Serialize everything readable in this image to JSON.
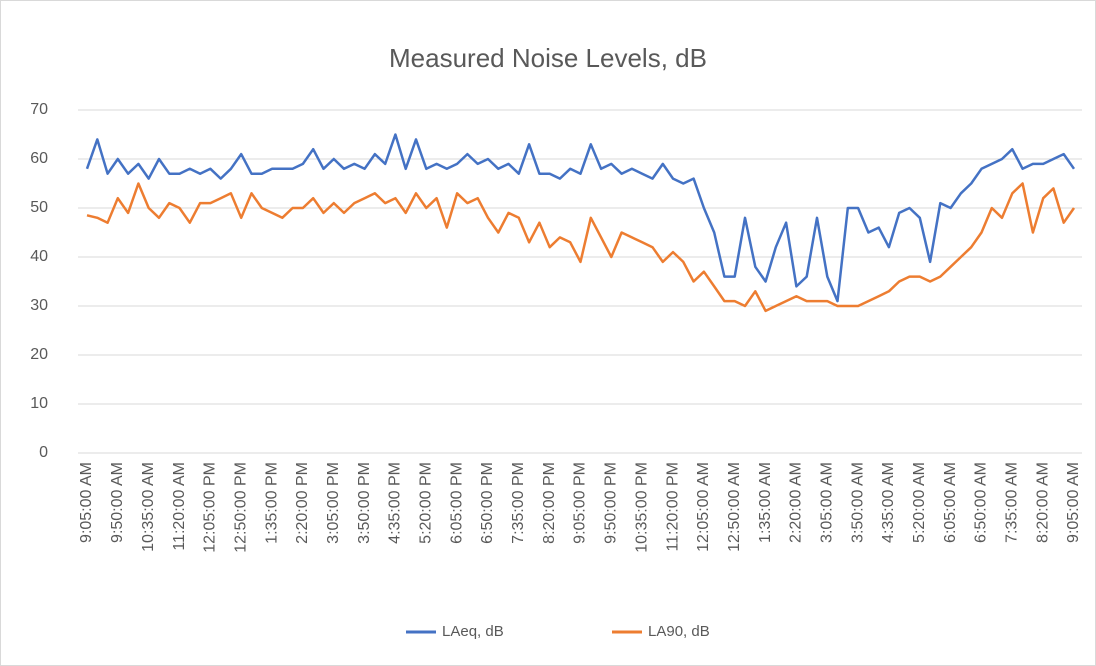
{
  "chart_data": {
    "type": "line",
    "title": "Measured Noise Levels, dB",
    "categories": [
      "9:05:00 AM",
      null,
      null,
      "9:50:00 AM",
      null,
      null,
      "10:35:00 AM",
      null,
      null,
      "11:20:00 AM",
      null,
      null,
      "12:05:00 PM",
      null,
      null,
      "12:50:00 PM",
      null,
      null,
      "1:35:00 PM",
      null,
      null,
      "2:20:00 PM",
      null,
      null,
      "3:05:00 PM",
      null,
      null,
      "3:50:00 PM",
      null,
      null,
      "4:35:00 PM",
      null,
      null,
      "5:20:00 PM",
      null,
      null,
      "6:05:00 PM",
      null,
      null,
      "6:50:00 PM",
      null,
      null,
      "7:35:00 PM",
      null,
      null,
      "8:20:00 PM",
      null,
      null,
      "9:05:00 PM",
      null,
      null,
      "9:50:00 PM",
      null,
      null,
      "10:35:00 PM",
      null,
      null,
      "11:20:00 PM",
      null,
      null,
      "12:05:00 AM",
      null,
      null,
      "12:50:00 AM",
      null,
      null,
      "1:35:00 AM",
      null,
      null,
      "2:20:00 AM",
      null,
      null,
      "3:05:00 AM",
      null,
      null,
      "3:50:00 AM",
      null,
      null,
      "4:35:00 AM",
      null,
      null,
      "5:20:00 AM",
      null,
      null,
      "6:05:00 AM",
      null,
      null,
      "6:50:00 AM",
      null,
      null,
      "7:35:00 AM",
      null,
      null,
      "8:20:00 AM",
      null,
      null,
      "9:05:00 AM"
    ],
    "series": [
      {
        "name": "LAeq, dB",
        "color": "#4472c4",
        "values": [
          58,
          64,
          57,
          60,
          57,
          59,
          56,
          60,
          57,
          57,
          58,
          57,
          58,
          56,
          58,
          61,
          57,
          57,
          58,
          58,
          58,
          59,
          62,
          58,
          60,
          58,
          59,
          58,
          61,
          59,
          65,
          58,
          64,
          58,
          59,
          58,
          59,
          61,
          59,
          60,
          58,
          59,
          57,
          63,
          57,
          57,
          56,
          58,
          57,
          63,
          58,
          59,
          57,
          58,
          57,
          56,
          59,
          56,
          55,
          56,
          50,
          45,
          36,
          36,
          48,
          38,
          35,
          42,
          47,
          34,
          36,
          48,
          36,
          31,
          50,
          50,
          45,
          46,
          42,
          49,
          50,
          48,
          39,
          51,
          50,
          53,
          55,
          58,
          59,
          60,
          62,
          58,
          59,
          59,
          60,
          61,
          58
        ]
      },
      {
        "name": "LA90, dB",
        "color": "#ed7d31",
        "values": [
          48.5,
          48,
          47,
          52,
          49,
          55,
          50,
          48,
          51,
          50,
          47,
          51,
          51,
          52,
          53,
          48,
          53,
          50,
          49,
          48,
          50,
          50,
          52,
          49,
          51,
          49,
          51,
          52,
          53,
          51,
          52,
          49,
          53,
          50,
          52,
          46,
          53,
          51,
          52,
          48,
          45,
          49,
          48,
          43,
          47,
          42,
          44,
          43,
          39,
          48,
          44,
          40,
          45,
          44,
          43,
          42,
          39,
          41,
          39,
          35,
          37,
          34,
          31,
          31,
          30,
          33,
          29,
          30,
          31,
          32,
          31,
          31,
          31,
          30,
          30,
          30,
          31,
          32,
          33,
          35,
          36,
          36,
          35,
          36,
          38,
          40,
          42,
          45,
          50,
          48,
          53,
          55,
          45,
          52,
          54,
          47,
          50
        ]
      }
    ],
    "ylim": [
      0,
      70
    ],
    "yticks": [
      0,
      10,
      20,
      30,
      40,
      50,
      60,
      70
    ],
    "grid": true,
    "legend": "bottom"
  }
}
